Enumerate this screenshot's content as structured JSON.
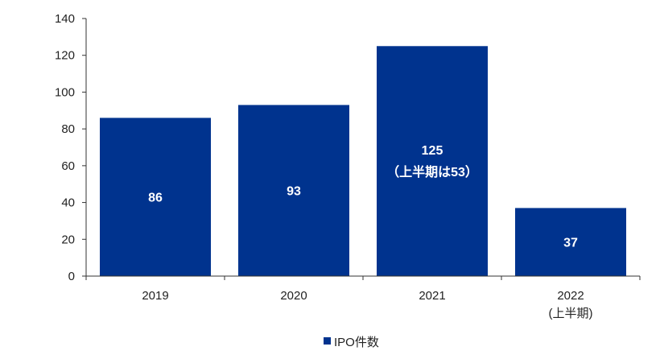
{
  "chart_data": {
    "type": "bar",
    "title": "",
    "xlabel": "",
    "ylabel": "",
    "ylim": [
      0,
      140
    ],
    "yticks": [
      0,
      20,
      40,
      60,
      80,
      100,
      120,
      140
    ],
    "categories": [
      {
        "line1": "2019",
        "line2": ""
      },
      {
        "line1": "2020",
        "line2": ""
      },
      {
        "line1": "2021",
        "line2": ""
      },
      {
        "line1": "2022",
        "line2": "(上半期)"
      }
    ],
    "series": [
      {
        "name": "IPO件数",
        "color": "#00338E",
        "values": [
          86,
          93,
          125,
          37
        ],
        "data_labels": [
          {
            "line1": "86",
            "line2": ""
          },
          {
            "line1": "93",
            "line2": ""
          },
          {
            "line1": "125",
            "line2": "（上半期は53）"
          },
          {
            "line1": "37",
            "line2": ""
          }
        ]
      }
    ],
    "legend": {
      "position": "bottom"
    },
    "grid": false
  }
}
